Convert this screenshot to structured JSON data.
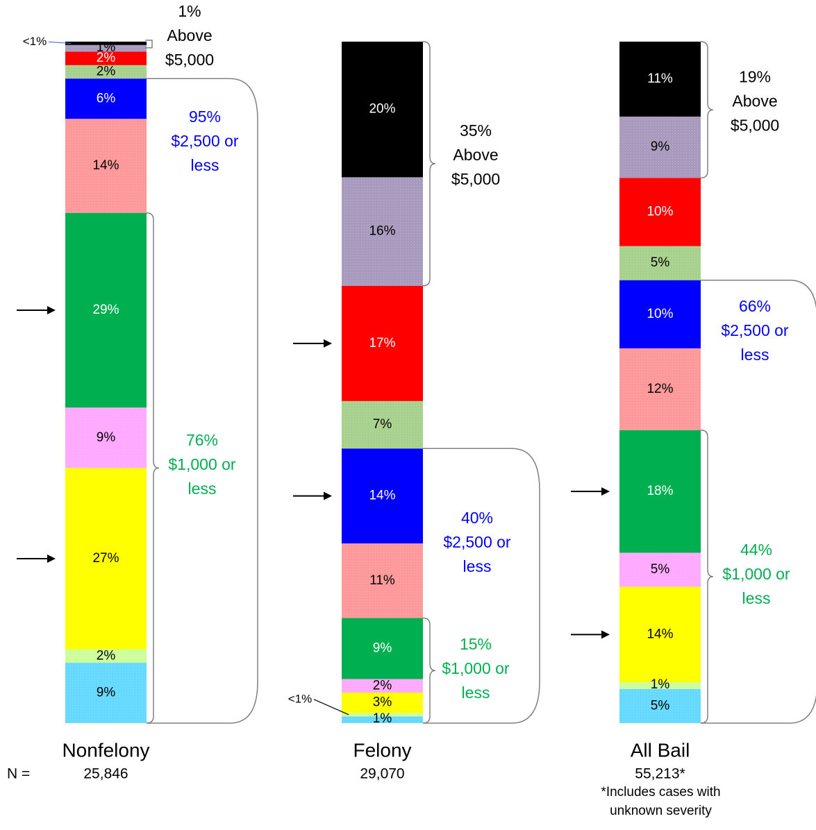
{
  "chart_data": {
    "type": "bar",
    "stacked": true,
    "orientation": "vertical",
    "value_unit": "percent",
    "segment_colors": [
      "#66D9FF",
      "#CCFF99",
      "#FFFF00",
      "#FFAAFF",
      "#00B050",
      "#FF9999",
      "#0000FF",
      "#A9D18E",
      "#FF0000",
      "#A99BBD",
      "#000000"
    ],
    "n_label": "N =",
    "columns": [
      {
        "label": "Nonfelony",
        "n": "25,846",
        "values": [
          9,
          2,
          27,
          9,
          29,
          14,
          6,
          2,
          2,
          1,
          0.5
        ],
        "labels": [
          "9%",
          "2%",
          "27%",
          "",
          "29%",
          "14%",
          "6%",
          "2%",
          "2%",
          "1%",
          ""
        ],
        "label_texts": [
          "9%",
          "2%",
          "27%",
          "9%",
          "29%",
          "14%",
          "6%",
          "2%",
          "2%",
          "1%",
          "<1%"
        ]
      },
      {
        "label": "Felony",
        "n": "29,070",
        "values": [
          1,
          0.5,
          3,
          2,
          9,
          11,
          14,
          7,
          17,
          16,
          20
        ]
      },
      {
        "label": "All Bail",
        "n": "55,213*",
        "values": [
          5,
          1,
          14,
          5,
          18,
          12,
          10,
          5,
          10,
          9,
          11
        ]
      }
    ],
    "segment_labels": [
      [
        "9%",
        "2%",
        "27%",
        "9%",
        "29%",
        "14%",
        "6%",
        "2%",
        "2%",
        "1%",
        "<1%"
      ],
      [
        "1%",
        "<1%",
        "3%",
        "2%",
        "9%",
        "11%",
        "14%",
        "7%",
        "17%",
        "16%",
        "20%"
      ],
      [
        "5%",
        "1%",
        "14%",
        "5%",
        "18%",
        "12%",
        "10%",
        "5%",
        "10%",
        "9%",
        "11%"
      ]
    ],
    "brackets": [
      {
        "column": 0,
        "lines": [
          "1%",
          "Above",
          "$5,000"
        ],
        "color": "#000000"
      },
      {
        "column": 0,
        "lines": [
          "95%",
          "$2,500 or",
          "less"
        ],
        "color": "#0000FF"
      },
      {
        "column": 0,
        "lines": [
          "76%",
          "$1,000 or",
          "less"
        ],
        "color": "#00B050"
      },
      {
        "column": 1,
        "lines": [
          "35%",
          "Above",
          "$5,000"
        ],
        "color": "#000000"
      },
      {
        "column": 1,
        "lines": [
          "40%",
          "$2,500 or",
          "less"
        ],
        "color": "#0000FF"
      },
      {
        "column": 1,
        "lines": [
          "15%",
          "$1,000 or",
          "less"
        ],
        "color": "#00B050"
      },
      {
        "column": 2,
        "lines": [
          "19%",
          "Above",
          "$5,000"
        ],
        "color": "#000000"
      },
      {
        "column": 2,
        "lines": [
          "66%",
          "$2,500 or",
          "less"
        ],
        "color": "#0000FF"
      },
      {
        "column": 2,
        "lines": [
          "44%",
          "$1,000 or",
          "less"
        ],
        "color": "#00B050"
      }
    ],
    "arrows": [
      {
        "column": 0,
        "segment": 4
      },
      {
        "column": 0,
        "segment": 2
      },
      {
        "column": 1,
        "segment": 8
      },
      {
        "column": 1,
        "segment": 6
      },
      {
        "column": 2,
        "segment": 4
      },
      {
        "column": 2,
        "segment": 2
      }
    ],
    "footnote": [
      "*Includes cases with",
      "unknown severity"
    ]
  }
}
